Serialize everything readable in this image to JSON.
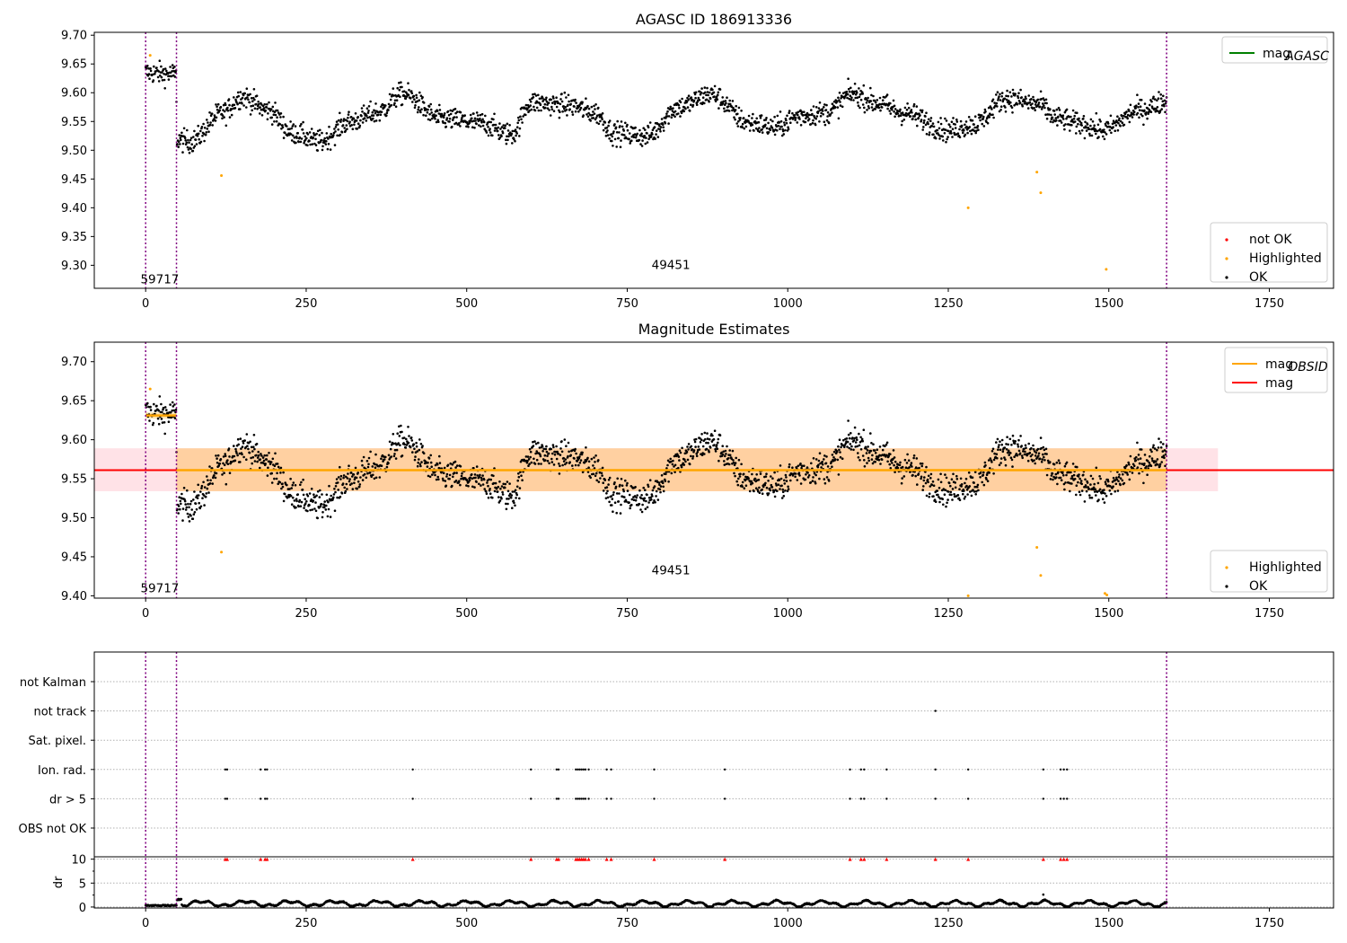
{
  "chart_data": [
    {
      "type": "scatter",
      "title": "AGASC ID 186913336",
      "xlim": [
        -80,
        1850
      ],
      "ylim": [
        9.26,
        9.705
      ],
      "xticks": [
        0,
        250,
        500,
        750,
        1000,
        1250,
        1500,
        1750
      ],
      "yticks": [
        9.3,
        9.35,
        9.4,
        9.45,
        9.5,
        9.55,
        9.6,
        9.65,
        9.7
      ],
      "vlines": [
        0,
        48,
        1590
      ],
      "annotations": [
        {
          "text": "59717",
          "x": 22,
          "y": 9.275
        },
        {
          "text": "49451",
          "x": 818,
          "y": 9.3
        }
      ],
      "legends": [
        {
          "placement": "upper right",
          "entries": [
            {
              "label": "mag",
              "sub": "AGASC",
              "color": "#008000",
              "kind": "line"
            }
          ]
        },
        {
          "placement": "lower right",
          "entries": [
            {
              "label": "not OK",
              "color": "#ff0000",
              "kind": "dot"
            },
            {
              "label": "Highlighted",
              "color": "#ffa500",
              "kind": "dot"
            },
            {
              "label": "OK",
              "color": "#000000",
              "kind": "dot"
            }
          ]
        }
      ],
      "highlighted": [
        [
          7,
          9.665
        ],
        [
          118,
          9.456
        ],
        [
          1281,
          9.4
        ],
        [
          1388,
          9.462
        ],
        [
          1394,
          9.426
        ],
        [
          1496,
          9.293
        ]
      ]
    },
    {
      "type": "scatter",
      "title": "Magnitude Estimates",
      "xlim": [
        -80,
        1850
      ],
      "ylim": [
        9.397,
        9.725
      ],
      "xticks": [
        0,
        250,
        500,
        750,
        1000,
        1250,
        1500,
        1750
      ],
      "yticks": [
        9.4,
        9.45,
        9.5,
        9.55,
        9.6,
        9.65,
        9.7
      ],
      "vlines": [
        0,
        48,
        1590
      ],
      "mag": 9.561,
      "mag_band": [
        9.534,
        9.589
      ],
      "mag_band_xrange": [
        -80,
        1670
      ],
      "obsid_segments": [
        {
          "x": [
            0,
            48
          ],
          "y": 9.631,
          "band": [
            9.627,
            9.635
          ]
        },
        {
          "x": [
            48,
            1590
          ],
          "y": 9.561,
          "band": [
            9.534,
            9.589
          ]
        }
      ],
      "annotations": [
        {
          "text": "59717",
          "x": 22,
          "y": 9.409
        },
        {
          "text": "49451",
          "x": 818,
          "y": 9.432
        }
      ],
      "legends": [
        {
          "placement": "upper right",
          "entries": [
            {
              "label": "mag",
              "sub": "OBSID",
              "color": "#ffa500",
              "kind": "line"
            },
            {
              "label": "mag",
              "sub": "",
              "color": "#ff0000",
              "kind": "line"
            }
          ]
        },
        {
          "placement": "lower right",
          "entries": [
            {
              "label": "Highlighted",
              "color": "#ffa500",
              "kind": "dot"
            },
            {
              "label": "OK",
              "color": "#000000",
              "kind": "dot"
            }
          ]
        }
      ],
      "highlighted": [
        [
          7,
          9.665
        ],
        [
          118,
          9.456
        ],
        [
          1281,
          9.4
        ],
        [
          1388,
          9.462
        ],
        [
          1394,
          9.426
        ],
        [
          1494,
          9.403
        ],
        [
          1497,
          9.401
        ]
      ]
    },
    {
      "type": "scatter",
      "title": "",
      "xlim": [
        -80,
        1850
      ],
      "xticks": [
        0,
        250,
        500,
        750,
        1000,
        1250,
        1500,
        1750
      ],
      "vlines": [
        0,
        48,
        1590
      ],
      "flag_rows": [
        "not Kalman",
        "not track",
        "Sat. pixel.",
        "Ion. rad.",
        "dr > 5",
        "OBS not OK"
      ],
      "flag_points": {
        "not track": [
          1230
        ],
        "Ion. rad.": [
          124,
          127,
          179,
          186,
          189,
          416,
          600,
          640,
          643,
          670,
          673,
          676,
          679,
          682,
          685,
          690,
          718,
          725,
          792,
          902,
          1097,
          1114,
          1119,
          1154,
          1230,
          1281,
          1398,
          1425,
          1430,
          1435
        ],
        "dr > 5": [
          124,
          127,
          179,
          186,
          189,
          416,
          600,
          640,
          643,
          670,
          673,
          676,
          679,
          682,
          685,
          690,
          718,
          725,
          792,
          902,
          1097,
          1114,
          1119,
          1154,
          1230,
          1281,
          1398,
          1425,
          1430,
          1435
        ]
      },
      "dr_ylabel": "dr",
      "dr_ylim": [
        -0.2,
        10.5
      ],
      "dr_yticks": [
        0,
        5,
        10
      ],
      "dr_clipped_at": 10,
      "dr_outlier": [
        1398,
        2.6
      ]
    }
  ]
}
